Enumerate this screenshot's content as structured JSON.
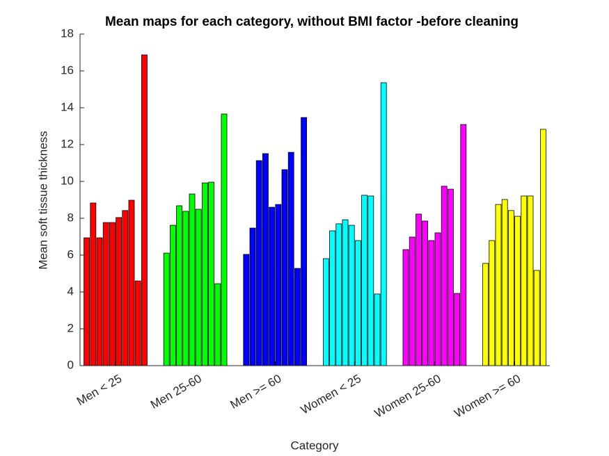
{
  "chart_data": {
    "type": "bar",
    "title": "Mean maps for each category, without BMI factor -before cleaning",
    "x_label": "Category",
    "y_label": "Mean soft tissue thickness",
    "categories": [
      "Men < 25",
      "Men 25-60",
      "Men >= 60",
      "Women < 25",
      "Women 25-60",
      "Women >= 60"
    ],
    "colors": [
      "#ff0000",
      "#00ff00",
      "#0000ff",
      "#00ffff",
      "#ff00ff",
      "#ffff00"
    ],
    "values": [
      [
        6.94,
        8.83,
        6.94,
        7.77,
        7.77,
        8.04,
        8.42,
        8.98,
        4.6,
        16.87
      ],
      [
        6.11,
        7.62,
        8.68,
        8.38,
        9.32,
        8.49,
        9.92,
        9.96,
        4.45,
        13.66
      ],
      [
        6.04,
        7.47,
        11.13,
        11.51,
        8.6,
        8.75,
        10.64,
        11.58,
        5.28,
        13.47
      ],
      [
        5.81,
        7.32,
        7.7,
        7.92,
        7.62,
        6.79,
        9.25,
        9.21,
        3.89,
        15.36
      ],
      [
        6.3,
        6.98,
        8.23,
        7.85,
        6.79,
        7.21,
        9.74,
        9.58,
        3.92,
        13.09
      ],
      [
        5.55,
        6.79,
        8.75,
        9.02,
        8.42,
        8.11,
        9.21,
        9.21,
        5.17,
        12.83
      ]
    ],
    "ylim": [
      0,
      18
    ],
    "yticks": [
      0,
      2,
      4,
      6,
      8,
      10,
      12,
      14,
      16,
      18
    ]
  }
}
